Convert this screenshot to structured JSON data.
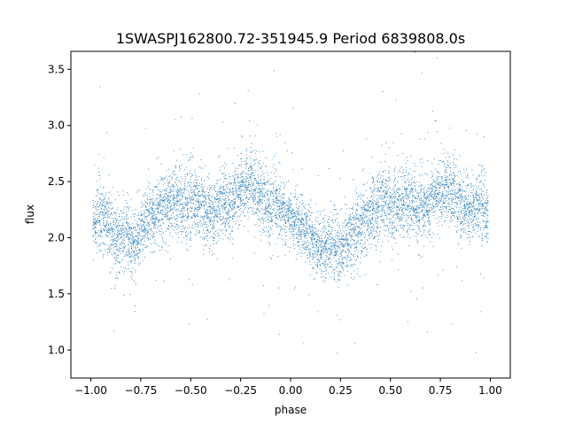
{
  "chart_data": {
    "type": "scatter",
    "title": "1SWASPJ162800.72-351945.9 Period 6839808.0s",
    "xlabel": "phase",
    "ylabel": "flux",
    "xlim": [
      -1.1,
      1.1
    ],
    "ylim": [
      0.75,
      3.66
    ],
    "xticks": [
      -1.0,
      -0.75,
      -0.5,
      -0.25,
      0.0,
      0.25,
      0.5,
      0.75,
      1.0
    ],
    "xtick_labels": [
      "−1.00",
      "−0.75",
      "−0.50",
      "−0.25",
      "0.00",
      "0.25",
      "0.50",
      "0.75",
      "1.00"
    ],
    "yticks": [
      1.0,
      1.5,
      2.0,
      2.5,
      3.0,
      3.5
    ],
    "ytick_labels": [
      "1.0",
      "1.5",
      "2.0",
      "2.5",
      "3.0",
      "3.5"
    ],
    "grid": false,
    "legend": "none",
    "marker_color": "#1f77b4",
    "series": [
      {
        "x": [
          -0.98,
          -0.96,
          -0.94,
          -0.92,
          -0.9,
          -0.88,
          -0.86,
          -0.84,
          -0.82,
          -0.8,
          -0.78,
          -0.76,
          -0.74,
          -0.72,
          -0.7,
          -0.68,
          -0.66,
          -0.64,
          -0.62,
          -0.6,
          -0.58,
          -0.56,
          -0.54,
          -0.52,
          -0.5,
          -0.48,
          -0.46,
          -0.44,
          -0.42,
          -0.4,
          -0.38,
          -0.36,
          -0.34,
          -0.32,
          -0.3,
          -0.28,
          -0.26,
          -0.24,
          -0.22,
          -0.2,
          -0.18,
          -0.16,
          -0.14,
          -0.12,
          -0.1,
          -0.08,
          -0.06,
          -0.04,
          -0.02,
          0.0,
          0.02,
          0.04,
          0.06,
          0.08,
          0.1,
          0.12,
          0.14,
          0.16,
          0.18,
          0.2,
          0.22,
          0.24,
          0.26,
          0.28,
          0.3,
          0.32,
          0.34,
          0.36,
          0.38,
          0.4,
          0.42,
          0.44,
          0.46,
          0.48,
          0.5,
          0.52,
          0.54,
          0.56,
          0.58,
          0.6,
          0.62,
          0.64,
          0.66,
          0.68,
          0.7,
          0.72,
          0.74,
          0.76,
          0.78,
          0.8,
          0.82,
          0.84,
          0.86,
          0.88,
          0.9,
          0.92,
          0.94,
          0.96,
          0.98
        ],
        "y": [
          2.15,
          2.2,
          2.18,
          2.15,
          2.05,
          2.0,
          1.98,
          2.0,
          2.02,
          1.95,
          1.9,
          2.0,
          2.1,
          2.15,
          2.18,
          2.2,
          2.25,
          2.28,
          2.3,
          2.28,
          2.3,
          2.35,
          2.3,
          2.25,
          2.3,
          2.35,
          2.28,
          2.25,
          2.2,
          2.22,
          2.25,
          2.3,
          2.35,
          2.3,
          2.28,
          2.35,
          2.4,
          2.45,
          2.48,
          2.5,
          2.45,
          2.4,
          2.35,
          2.3,
          2.25,
          2.3,
          2.28,
          2.25,
          2.2,
          2.18,
          2.15,
          2.12,
          2.1,
          2.05,
          2.0,
          1.98,
          1.95,
          1.9,
          1.92,
          1.95,
          1.9,
          1.88,
          1.9,
          1.95,
          2.0,
          2.05,
          2.1,
          2.15,
          2.2,
          2.22,
          2.25,
          2.28,
          2.3,
          2.35,
          2.3,
          2.25,
          2.3,
          2.32,
          2.35,
          2.3,
          2.28,
          2.25,
          2.28,
          2.3,
          2.32,
          2.35,
          2.4,
          2.42,
          2.45,
          2.4,
          2.38,
          2.35,
          2.3,
          2.28,
          2.25,
          2.28,
          2.3,
          2.25,
          2.22
        ],
        "spread": [
          0.25,
          0.3,
          0.28,
          0.25,
          0.3,
          0.3,
          0.32,
          0.3,
          0.3,
          0.28,
          0.3,
          0.28,
          0.25,
          0.28,
          0.3,
          0.3,
          0.28,
          0.3,
          0.32,
          0.3,
          0.35,
          0.35,
          0.35,
          0.35,
          0.33,
          0.35,
          0.32,
          0.3,
          0.28,
          0.25,
          0.28,
          0.28,
          0.3,
          0.3,
          0.3,
          0.28,
          0.28,
          0.3,
          0.28,
          0.3,
          0.32,
          0.3,
          0.28,
          0.3,
          0.3,
          0.28,
          0.28,
          0.25,
          0.25,
          0.25,
          0.25,
          0.25,
          0.25,
          0.25,
          0.25,
          0.25,
          0.25,
          0.28,
          0.28,
          0.3,
          0.28,
          0.28,
          0.28,
          0.28,
          0.3,
          0.3,
          0.3,
          0.3,
          0.3,
          0.3,
          0.32,
          0.32,
          0.33,
          0.33,
          0.33,
          0.33,
          0.32,
          0.3,
          0.3,
          0.28,
          0.28,
          0.28,
          0.28,
          0.28,
          0.28,
          0.3,
          0.3,
          0.3,
          0.28,
          0.28,
          0.3,
          0.3,
          0.28,
          0.28,
          0.28,
          0.28,
          0.28,
          0.28,
          0.28
        ]
      }
    ]
  }
}
